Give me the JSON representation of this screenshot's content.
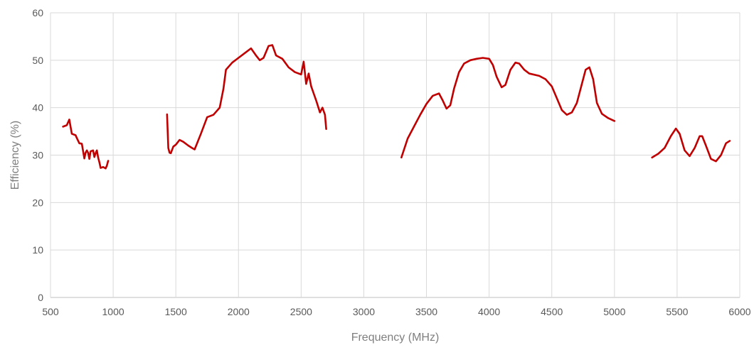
{
  "chart_data": {
    "type": "line",
    "title": "",
    "xlabel": "Frequency (MHz)",
    "ylabel": "Efficiency (%)",
    "xlim": [
      500,
      6000
    ],
    "ylim": [
      0,
      60
    ],
    "x_ticks": [
      500,
      1000,
      1500,
      2000,
      2500,
      3000,
      3500,
      4000,
      4500,
      5000,
      5500,
      6000
    ],
    "y_ticks": [
      0,
      10,
      20,
      30,
      40,
      50,
      60
    ],
    "grid": "vertical and horizontal",
    "legend": "none",
    "series_color": "#c00000",
    "series": [
      {
        "segments": [
          [
            [
              600,
              36
            ],
            [
              630,
              36.3
            ],
            [
              650,
              37.5
            ],
            [
              670,
              34.5
            ],
            [
              690,
              34.3
            ],
            [
              700,
              34.2
            ],
            [
              710,
              33.6
            ],
            [
              730,
              32.5
            ],
            [
              750,
              32.4
            ],
            [
              770,
              29.3
            ],
            [
              780,
              30.5
            ],
            [
              790,
              31
            ],
            [
              800,
              30.5
            ],
            [
              810,
              29.2
            ],
            [
              820,
              30.8
            ],
            [
              840,
              31
            ],
            [
              850,
              29.6
            ],
            [
              860,
              30.4
            ],
            [
              870,
              31
            ],
            [
              880,
              29.5
            ],
            [
              890,
              28.5
            ],
            [
              900,
              27.3
            ],
            [
              920,
              27.5
            ],
            [
              940,
              27.2
            ],
            [
              950,
              27.8
            ],
            [
              960,
              28.8
            ]
          ],
          [
            [
              1430,
              38.6
            ],
            [
              1440,
              31.5
            ],
            [
              1450,
              30.5
            ],
            [
              1460,
              30.4
            ],
            [
              1480,
              31.8
            ],
            [
              1500,
              32.2
            ],
            [
              1530,
              33.2
            ],
            [
              1560,
              32.8
            ],
            [
              1600,
              32
            ],
            [
              1630,
              31.5
            ],
            [
              1650,
              31.2
            ],
            [
              1700,
              34.5
            ],
            [
              1750,
              38
            ],
            [
              1800,
              38.5
            ],
            [
              1850,
              40
            ],
            [
              1880,
              44
            ],
            [
              1900,
              48
            ],
            [
              1950,
              49.5
            ],
            [
              2000,
              50.5
            ],
            [
              2050,
              51.5
            ],
            [
              2100,
              52.5
            ],
            [
              2140,
              51
            ],
            [
              2170,
              50
            ],
            [
              2200,
              50.5
            ],
            [
              2240,
              53
            ],
            [
              2270,
              53.2
            ],
            [
              2300,
              51
            ],
            [
              2350,
              50.3
            ],
            [
              2400,
              48.5
            ],
            [
              2450,
              47.5
            ],
            [
              2500,
              47
            ],
            [
              2520,
              49.7
            ],
            [
              2540,
              45
            ],
            [
              2560,
              47.2
            ],
            [
              2580,
              44.5
            ],
            [
              2600,
              43
            ],
            [
              2620,
              41.5
            ],
            [
              2650,
              39
            ],
            [
              2670,
              40
            ],
            [
              2690,
              38.5
            ],
            [
              2700,
              35.5
            ]
          ],
          [
            [
              3300,
              29.5
            ],
            [
              3350,
              33.5
            ],
            [
              3400,
              36
            ],
            [
              3450,
              38.5
            ],
            [
              3500,
              40.8
            ],
            [
              3550,
              42.5
            ],
            [
              3600,
              43
            ],
            [
              3630,
              41.5
            ],
            [
              3660,
              39.8
            ],
            [
              3690,
              40.5
            ],
            [
              3720,
              44
            ],
            [
              3760,
              47.5
            ],
            [
              3800,
              49.3
            ],
            [
              3850,
              50
            ],
            [
              3900,
              50.3
            ],
            [
              3950,
              50.5
            ],
            [
              4000,
              50.3
            ],
            [
              4030,
              49
            ],
            [
              4060,
              46.5
            ],
            [
              4100,
              44.3
            ],
            [
              4130,
              44.8
            ],
            [
              4170,
              48
            ],
            [
              4210,
              49.5
            ],
            [
              4240,
              49.3
            ],
            [
              4280,
              48
            ],
            [
              4320,
              47.2
            ],
            [
              4400,
              46.7
            ],
            [
              4450,
              46
            ],
            [
              4500,
              44.5
            ],
            [
              4540,
              42
            ],
            [
              4580,
              39.5
            ],
            [
              4620,
              38.5
            ],
            [
              4660,
              39
            ],
            [
              4700,
              41
            ],
            [
              4740,
              45
            ],
            [
              4770,
              48
            ],
            [
              4800,
              48.5
            ],
            [
              4830,
              46
            ],
            [
              4860,
              41
            ],
            [
              4900,
              38.7
            ],
            [
              4950,
              37.8
            ],
            [
              5000,
              37.2
            ]
          ],
          [
            [
              5300,
              29.5
            ],
            [
              5350,
              30.3
            ],
            [
              5400,
              31.5
            ],
            [
              5450,
              34
            ],
            [
              5490,
              35.6
            ],
            [
              5520,
              34.5
            ],
            [
              5560,
              31
            ],
            [
              5600,
              29.8
            ],
            [
              5640,
              31.5
            ],
            [
              5680,
              34
            ],
            [
              5700,
              34
            ],
            [
              5730,
              32
            ],
            [
              5770,
              29.2
            ],
            [
              5810,
              28.7
            ],
            [
              5850,
              30
            ],
            [
              5890,
              32.5
            ],
            [
              5920,
              33
            ]
          ]
        ]
      }
    ]
  }
}
